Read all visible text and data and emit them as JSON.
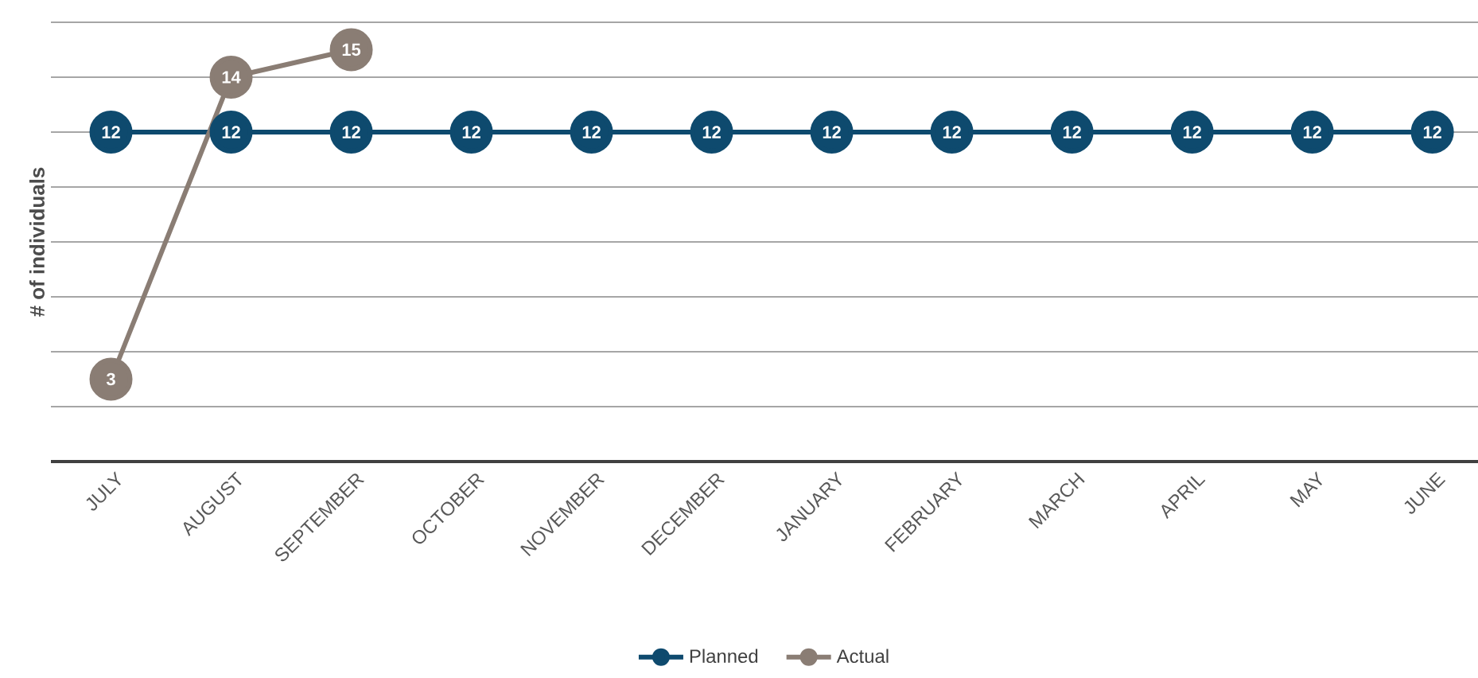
{
  "chart_data": {
    "type": "line",
    "ylabel": "# of individuals",
    "categories": [
      "JULY",
      "AUGUST",
      "SEPTEMBER",
      "OCTOBER",
      "NOVEMBER",
      "DECEMBER",
      "JANUARY",
      "FEBRUARY",
      "MARCH",
      "APRIL",
      "MAY",
      "JUNE"
    ],
    "series": [
      {
        "name": "Planned",
        "color": "#0e4a6e",
        "values": [
          12,
          12,
          12,
          12,
          12,
          12,
          12,
          12,
          12,
          12,
          12,
          12
        ]
      },
      {
        "name": "Actual",
        "color": "#8a7d74",
        "values": [
          3,
          14,
          15,
          null,
          null,
          null,
          null,
          null,
          null,
          null,
          null,
          null
        ]
      }
    ],
    "ylim": [
      0,
      16
    ],
    "yticks": [
      {
        "value": 0,
        "label": null
      },
      {
        "value": 2,
        "label": null
      },
      {
        "value": 4,
        "label": null
      },
      {
        "value": 6,
        "label": null
      },
      {
        "value": 8,
        "label": null
      },
      {
        "value": 10,
        "label": null
      },
      {
        "value": 12,
        "label": null
      },
      {
        "value": 14,
        "label": null
      },
      {
        "value": 16,
        "label": null
      }
    ],
    "tick_labels": "x",
    "grid": "y",
    "legend": "bottom",
    "marker": "circle",
    "line_style": "solid",
    "data_labels": true
  }
}
